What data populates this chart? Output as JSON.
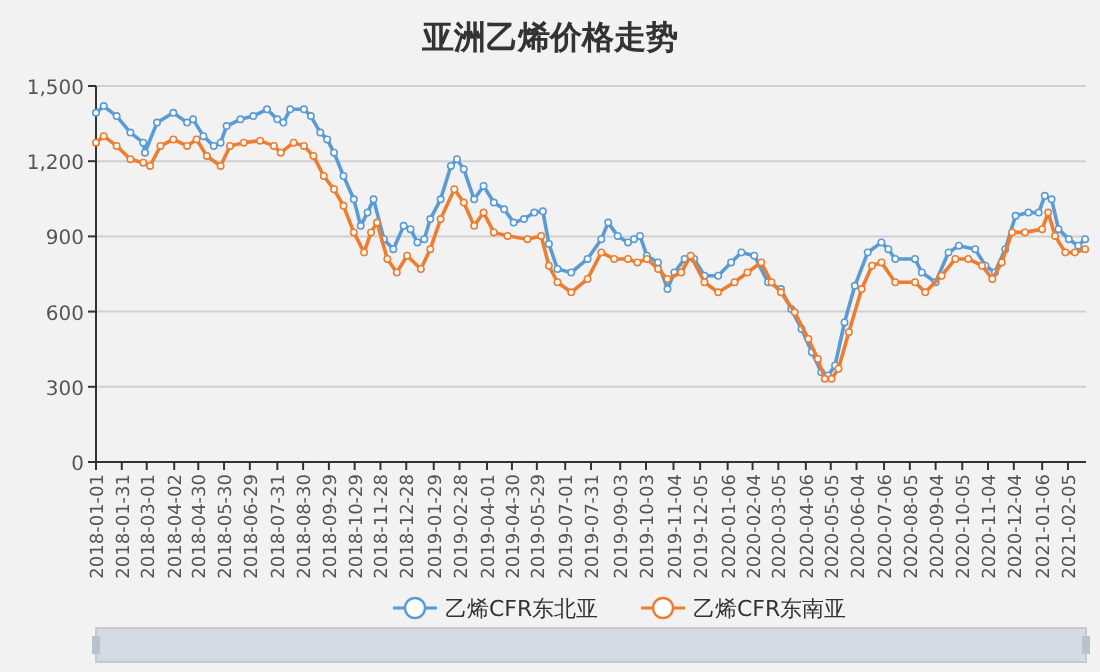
{
  "chart_data": {
    "type": "line",
    "title": "亚洲乙烯价格走势",
    "legend": "bottom",
    "grid": "y",
    "marker": "circle",
    "line_style": "solid",
    "xlim": [
      "2018-01-01",
      "2021-02-26"
    ],
    "xticks": [
      "2018-01-01",
      "2018-01-31",
      "2018-03-01",
      "2018-04-02",
      "2018-04-30",
      "2018-05-30",
      "2018-06-29",
      "2018-07-31",
      "2018-08-30",
      "2018-09-29",
      "2018-10-29",
      "2018-11-28",
      "2018-12-28",
      "2019-01-29",
      "2019-02-28",
      "2019-04-01",
      "2019-04-30",
      "2019-05-29",
      "2019-07-01",
      "2019-07-31",
      "2019-09-03",
      "2019-10-03",
      "2019-11-04",
      "2019-12-05",
      "2020-01-06",
      "2020-02-04",
      "2020-03-05",
      "2020-04-06",
      "2020-05-05",
      "2020-06-04",
      "2020-07-06",
      "2020-08-05",
      "2020-09-04",
      "2020-10-05",
      "2020-11-04",
      "2020-12-04",
      "2021-01-06",
      "2021-02-05"
    ],
    "ylim": [
      0,
      1500
    ],
    "yticks": [
      0,
      300,
      600,
      900,
      {
        "value": 1200,
        "label": "1,200"
      },
      {
        "value": 1500,
        "label": "1,500"
      }
    ],
    "series": [
      {
        "name": "乙烯CFR东北亚",
        "color": "#5b9bd5",
        "x": [
          "2018-01-01",
          "2018-01-10",
          "2018-01-25",
          "2018-02-10",
          "2018-02-25",
          "2018-02-27",
          "2018-03-13",
          "2018-04-01",
          "2018-04-17",
          "2018-04-24",
          "2018-05-06",
          "2018-05-18",
          "2018-05-26",
          "2018-06-02",
          "2018-06-18",
          "2018-07-03",
          "2018-07-19",
          "2018-07-31",
          "2018-08-07",
          "2018-08-15",
          "2018-08-31",
          "2018-09-08",
          "2018-09-19",
          "2018-09-27",
          "2018-10-05",
          "2018-10-16",
          "2018-10-28",
          "2018-11-05",
          "2018-11-13",
          "2018-11-20",
          "2018-12-02",
          "2018-12-13",
          "2018-12-25",
          "2019-01-02",
          "2019-01-10",
          "2019-01-18",
          "2019-01-25",
          "2019-02-06",
          "2019-02-18",
          "2019-02-25",
          "2019-03-05",
          "2019-03-17",
          "2019-03-28",
          "2019-04-09",
          "2019-04-21",
          "2019-05-02",
          "2019-05-14",
          "2019-05-26",
          "2019-06-05",
          "2019-06-12",
          "2019-06-22",
          "2019-07-08",
          "2019-07-27",
          "2019-08-12",
          "2019-08-20",
          "2019-08-31",
          "2019-09-12",
          "2019-09-19",
          "2019-09-26",
          "2019-10-04",
          "2019-10-17",
          "2019-10-28",
          "2019-11-05",
          "2019-11-17",
          "2019-11-28",
          "2019-12-10",
          "2019-12-26",
          "2020-01-10",
          "2020-01-22",
          "2020-02-06",
          "2020-02-22",
          "2020-03-08",
          "2020-03-20",
          "2020-04-01",
          "2020-04-13",
          "2020-04-24",
          "2020-05-02",
          "2020-05-10",
          "2020-05-21",
          "2020-06-02",
          "2020-06-17",
          "2020-07-03",
          "2020-07-11",
          "2020-07-19",
          "2020-08-11",
          "2020-08-19",
          "2020-09-04",
          "2020-09-19",
          "2020-10-01",
          "2020-10-20",
          "2020-11-01",
          "2020-11-12",
          "2020-11-24",
          "2020-12-06",
          "2020-12-21",
          "2021-01-02",
          "2021-01-09",
          "2021-01-17",
          "2021-01-25",
          "2021-02-06",
          "2021-02-17",
          "2021-02-25"
        ],
        "values": [
          1393,
          1420,
          1380,
          1314,
          1274,
          1234,
          1354,
          1393,
          1354,
          1367,
          1300,
          1261,
          1274,
          1340,
          1367,
          1380,
          1407,
          1367,
          1354,
          1407,
          1407,
          1380,
          1314,
          1287,
          1234,
          1141,
          1048,
          942,
          995,
          1048,
          889,
          849,
          942,
          929,
          876,
          889,
          969,
          1048,
          1181,
          1208,
          1168,
          1048,
          1101,
          1035,
          1008,
          955,
          969,
          995,
          1000,
          870,
          770,
          756,
          810,
          889,
          955,
          902,
          876,
          889,
          902,
          823,
          796,
          690,
          756,
          810,
          810,
          743,
          743,
          796,
          836,
          823,
          717,
          690,
          610,
          531,
          438,
          358,
          345,
          385,
          557,
          703,
          836,
          876,
          849,
          810,
          810,
          756,
          717,
          836,
          863,
          849,
          783,
          756,
          849,
          982,
          995,
          995,
          1062,
          1048,
          929,
          889,
          863,
          889
        ]
      },
      {
        "name": "乙烯CFR东南亚",
        "color": "#ed7d31",
        "x": [
          "2018-01-01",
          "2018-01-10",
          "2018-01-25",
          "2018-02-10",
          "2018-02-25",
          "2018-03-05",
          "2018-03-17",
          "2018-04-01",
          "2018-04-17",
          "2018-04-28",
          "2018-05-10",
          "2018-05-26",
          "2018-06-06",
          "2018-06-22",
          "2018-07-11",
          "2018-07-27",
          "2018-08-04",
          "2018-08-19",
          "2018-08-31",
          "2018-09-11",
          "2018-09-23",
          "2018-10-05",
          "2018-10-16",
          "2018-10-28",
          "2018-11-09",
          "2018-11-17",
          "2018-11-24",
          "2018-12-06",
          "2018-12-17",
          "2018-12-29",
          "2019-01-14",
          "2019-01-25",
          "2019-02-06",
          "2019-02-22",
          "2019-03-05",
          "2019-03-17",
          "2019-03-28",
          "2019-04-09",
          "2019-04-25",
          "2019-05-18",
          "2019-06-03",
          "2019-06-12",
          "2019-06-22",
          "2019-07-08",
          "2019-07-27",
          "2019-08-12",
          "2019-08-27",
          "2019-09-12",
          "2019-09-23",
          "2019-10-04",
          "2019-10-17",
          "2019-10-28",
          "2019-11-13",
          "2019-11-24",
          "2019-12-10",
          "2019-12-26",
          "2020-01-14",
          "2020-01-29",
          "2020-02-14",
          "2020-02-26",
          "2020-03-08",
          "2020-03-24",
          "2020-04-09",
          "2020-04-20",
          "2020-04-28",
          "2020-05-06",
          "2020-05-14",
          "2020-05-26",
          "2020-06-10",
          "2020-06-22",
          "2020-07-03",
          "2020-07-19",
          "2020-08-11",
          "2020-08-23",
          "2020-09-11",
          "2020-09-27",
          "2020-10-12",
          "2020-10-28",
          "2020-11-09",
          "2020-11-20",
          "2020-12-02",
          "2020-12-17",
          "2021-01-06",
          "2021-01-13",
          "2021-01-21",
          "2021-02-02",
          "2021-02-13",
          "2021-02-25"
        ],
        "values": [
          1274,
          1300,
          1261,
          1208,
          1194,
          1181,
          1261,
          1287,
          1261,
          1287,
          1221,
          1181,
          1261,
          1274,
          1282,
          1261,
          1234,
          1274,
          1261,
          1221,
          1141,
          1088,
          1022,
          916,
          836,
          916,
          955,
          810,
          756,
          823,
          770,
          849,
          969,
          1088,
          1035,
          942,
          995,
          916,
          902,
          889,
          902,
          783,
          717,
          677,
          730,
          836,
          810,
          810,
          796,
          810,
          770,
          730,
          756,
          823,
          717,
          677,
          717,
          756,
          796,
          717,
          677,
          597,
          491,
          411,
          332,
          332,
          372,
          518,
          690,
          783,
          796,
          717,
          717,
          677,
          743,
          810,
          810,
          783,
          730,
          796,
          916,
          916,
          929,
          995,
          902,
          836,
          836,
          849
        ]
      }
    ]
  }
}
